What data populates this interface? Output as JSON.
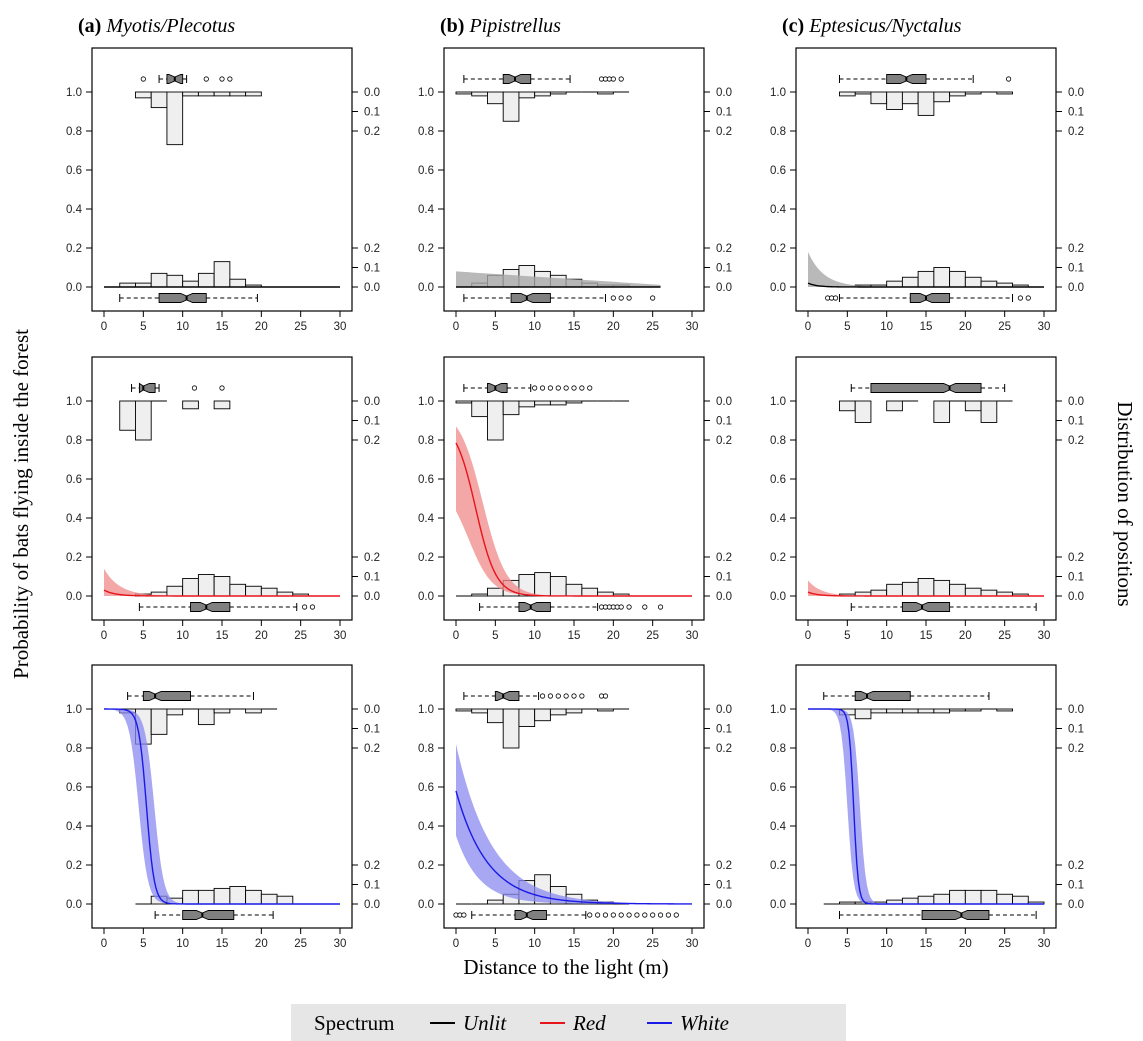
{
  "figure": {
    "ylabel_left": "Probability of bats flying inside the forest",
    "ylabel_right": "Distribution of positions",
    "xlabel": "Distance to the light (m)"
  },
  "columns": [
    {
      "letter": "(a)",
      "taxon": "Myotis/Plecotus"
    },
    {
      "letter": "(b)",
      "taxon": "Pipistrellus"
    },
    {
      "letter": "(c)",
      "taxon": "Eptesicus/Nyctalus"
    }
  ],
  "legend": {
    "title": "Spectrum",
    "items": [
      {
        "label": "Unlit",
        "color": "#000000"
      },
      {
        "label": "Red",
        "color": "#e8141b"
      },
      {
        "label": "White",
        "color": "#1a1ae6"
      }
    ]
  },
  "chart_data": {
    "type": "line",
    "layout": "3x3 small multiples (rows = spectrum, columns = taxon)",
    "xlim": [
      0,
      30
    ],
    "ylim": [
      0,
      1
    ],
    "x_ticks": [
      0,
      5,
      10,
      15,
      20,
      25,
      30
    ],
    "y_ticks": [
      0.0,
      0.2,
      0.4,
      0.6,
      0.8,
      1.0
    ],
    "right_axis_ticks": [
      0.0,
      0.1,
      0.2
    ],
    "hist_bins": [
      0,
      2,
      4,
      6,
      8,
      10,
      12,
      14,
      16,
      18,
      20,
      22,
      24,
      26,
      28,
      30
    ],
    "panels": [
      {
        "row": "Unlit",
        "col": "Myotis/Plecotus",
        "color": "#000000",
        "curve": {
          "type": "flat",
          "y": 0.0,
          "x_end": 30
        },
        "band": null,
        "hist_inside": {
          "bins": [
            4,
            6,
            8,
            10,
            12,
            14,
            16,
            18
          ],
          "freq": [
            0.03,
            0.08,
            0.27,
            0.02,
            0.02,
            0.02,
            0.02,
            0.02
          ]
        },
        "hist_outside": {
          "bins": [
            0,
            2,
            4,
            6,
            8,
            10,
            12,
            14,
            16,
            18
          ],
          "freq": [
            0.0,
            0.02,
            0.02,
            0.07,
            0.06,
            0.03,
            0.07,
            0.13,
            0.04,
            0.01
          ]
        },
        "box_inside": {
          "whisker_low": 7,
          "q1": 8,
          "median": 9,
          "q3": 10,
          "whisker_high": 10.5,
          "outliers": [
            5,
            13,
            15,
            16
          ]
        },
        "box_outside": {
          "whisker_low": 2,
          "q1": 7,
          "median": 10.5,
          "q3": 13,
          "whisker_high": 19.5,
          "outliers": []
        }
      },
      {
        "row": "Unlit",
        "col": "Pipistrellus",
        "color": "#000000",
        "curve": {
          "type": "flat",
          "y": 0.0,
          "x_end": 26
        },
        "band": {
          "type": "grey",
          "left": 0.08,
          "x_end": 26
        },
        "hist_inside": {
          "bins": [
            0,
            2,
            4,
            6,
            8,
            10,
            12,
            14,
            16,
            18,
            20
          ],
          "freq": [
            0.01,
            0.02,
            0.06,
            0.15,
            0.03,
            0.02,
            0.01,
            0.0,
            0.0,
            0.01,
            0.0
          ]
        },
        "hist_outside": {
          "bins": [
            0,
            2,
            4,
            6,
            8,
            10,
            12,
            14,
            16,
            18,
            20,
            22,
            24
          ],
          "freq": [
            0.0,
            0.02,
            0.06,
            0.09,
            0.11,
            0.08,
            0.06,
            0.04,
            0.02,
            0.01,
            0.01,
            0.0,
            0.0
          ]
        },
        "box_inside": {
          "whisker_low": 1,
          "q1": 6,
          "median": 7.5,
          "q3": 9.5,
          "whisker_high": 14.5,
          "outliers": [
            18.5,
            19,
            19.5,
            20,
            21
          ]
        },
        "box_outside": {
          "whisker_low": 1,
          "q1": 7,
          "median": 9,
          "q3": 12,
          "whisker_high": 19,
          "outliers": [
            20,
            21,
            22,
            25
          ]
        }
      },
      {
        "row": "Unlit",
        "col": "Eptesicus/Nyctalus",
        "color": "#000000",
        "curve": {
          "type": "exp",
          "left": 0.02,
          "k": 0.9,
          "x_end": 30
        },
        "band": {
          "type": "grey",
          "left": 0.18,
          "k": 0.5,
          "x_end": 30
        },
        "hist_inside": {
          "bins": [
            4,
            6,
            8,
            10,
            12,
            14,
            16,
            18,
            20,
            22,
            24
          ],
          "freq": [
            0.02,
            0.01,
            0.06,
            0.09,
            0.06,
            0.12,
            0.05,
            0.02,
            0.01,
            0.0,
            0.01
          ]
        },
        "hist_outside": {
          "bins": [
            4,
            6,
            8,
            10,
            12,
            14,
            16,
            18,
            20,
            22,
            24,
            26,
            28
          ],
          "freq": [
            0.0,
            0.01,
            0.01,
            0.03,
            0.05,
            0.08,
            0.1,
            0.08,
            0.05,
            0.03,
            0.02,
            0.01,
            0.0
          ]
        },
        "box_inside": {
          "whisker_low": 4,
          "q1": 10,
          "median": 12.5,
          "q3": 15,
          "whisker_high": 21,
          "outliers": [
            25.5
          ]
        },
        "box_outside": {
          "whisker_low": 4,
          "q1": 13,
          "median": 15,
          "q3": 18,
          "whisker_high": 26,
          "outliers": [
            2.5,
            3,
            3.5,
            27,
            28
          ]
        }
      },
      {
        "row": "Red",
        "col": "Myotis/Plecotus",
        "color": "#e8141b",
        "curve": {
          "type": "exp",
          "left": 0.03,
          "k": 0.7,
          "x_end": 30
        },
        "band": {
          "type": "colored",
          "left": 0.14,
          "k": 0.5,
          "x_end": 30
        },
        "hist_inside": {
          "bins": [
            2,
            4,
            6,
            10,
            14
          ],
          "freq": [
            0.15,
            0.2,
            0.0,
            0.04,
            0.04
          ]
        },
        "hist_outside": {
          "bins": [
            4,
            6,
            8,
            10,
            12,
            14,
            16,
            18,
            20,
            22,
            24,
            26
          ],
          "freq": [
            0.01,
            0.02,
            0.05,
            0.09,
            0.11,
            0.1,
            0.06,
            0.05,
            0.04,
            0.02,
            0.01,
            0.0
          ]
        },
        "box_inside": {
          "whisker_low": 3.5,
          "q1": 4.5,
          "median": 5,
          "q3": 6.5,
          "whisker_high": 7,
          "outliers": [
            11.5,
            15
          ]
        },
        "box_outside": {
          "whisker_low": 4.5,
          "q1": 11,
          "median": 13,
          "q3": 16,
          "whisker_high": 24.5,
          "outliers": [
            25.5,
            26.5
          ]
        }
      },
      {
        "row": "Red",
        "col": "Pipistrellus",
        "color": "#e8141b",
        "curve": {
          "type": "sigmoid",
          "x0": 2.5,
          "s": 1.3,
          "top": 0.9,
          "x_end": 30
        },
        "band": {
          "type": "colored",
          "x0": 2.5,
          "s": 1.5,
          "top": 0.96,
          "bottom": 0.75,
          "x_end": 30
        },
        "hist_inside": {
          "bins": [
            0,
            2,
            4,
            6,
            8,
            10,
            12,
            14,
            16,
            18,
            20
          ],
          "freq": [
            0.01,
            0.08,
            0.2,
            0.07,
            0.03,
            0.02,
            0.02,
            0.01,
            0.0,
            0.0,
            0.0
          ]
        },
        "hist_outside": {
          "bins": [
            0,
            2,
            4,
            6,
            8,
            10,
            12,
            14,
            16,
            18,
            20,
            22,
            24
          ],
          "freq": [
            0.0,
            0.01,
            0.04,
            0.08,
            0.11,
            0.12,
            0.1,
            0.06,
            0.04,
            0.02,
            0.01,
            0.0,
            0.0
          ]
        },
        "box_inside": {
          "whisker_low": 1,
          "q1": 4,
          "median": 5,
          "q3": 6.5,
          "whisker_high": 9.5,
          "outliers": [
            10,
            11,
            12,
            13,
            14,
            15,
            16,
            17
          ]
        },
        "box_outside": {
          "whisker_low": 3,
          "q1": 8,
          "median": 9.5,
          "q3": 12,
          "whisker_high": 18,
          "outliers": [
            18.5,
            19,
            19.5,
            20,
            20.5,
            21,
            22,
            24,
            26
          ]
        }
      },
      {
        "row": "Red",
        "col": "Eptesicus/Nyctalus",
        "color": "#e8141b",
        "curve": {
          "type": "exp",
          "left": 0.02,
          "k": 0.8,
          "x_end": 30
        },
        "band": {
          "type": "colored",
          "left": 0.08,
          "k": 0.6,
          "x_end": 30
        },
        "hist_inside": {
          "bins": [
            4,
            6,
            10,
            12,
            16,
            18,
            20,
            22,
            24
          ],
          "freq": [
            0.05,
            0.11,
            0.05,
            0.0,
            0.11,
            0.0,
            0.05,
            0.11,
            0.0
          ]
        },
        "hist_outside": {
          "bins": [
            4,
            6,
            8,
            10,
            12,
            14,
            16,
            18,
            20,
            22,
            24,
            26,
            28
          ],
          "freq": [
            0.01,
            0.02,
            0.03,
            0.06,
            0.07,
            0.09,
            0.08,
            0.06,
            0.04,
            0.03,
            0.02,
            0.01,
            0.0
          ]
        },
        "box_inside": {
          "whisker_low": 5.5,
          "q1": 8,
          "median": 18,
          "q3": 22,
          "whisker_high": 25,
          "outliers": []
        },
        "box_outside": {
          "whisker_low": 5.5,
          "q1": 12,
          "median": 14.5,
          "q3": 18,
          "whisker_high": 29,
          "outliers": []
        }
      },
      {
        "row": "White",
        "col": "Myotis/Plecotus",
        "color": "#1a1ae6",
        "curve": {
          "type": "sigmoid",
          "x0": 5.4,
          "s": 0.5,
          "top": 1.0,
          "x_start": 0,
          "x_end": 30
        },
        "band": {
          "type": "colored",
          "x0": 5.4,
          "s": 0.6,
          "top": 1.0,
          "bottom": 1.0,
          "spread": 1.0,
          "x_end": 30
        },
        "hist_inside": {
          "bins": [
            2,
            4,
            6,
            8,
            10,
            12,
            14,
            16,
            18,
            20
          ],
          "freq": [
            0.02,
            0.18,
            0.13,
            0.03,
            0.0,
            0.08,
            0.02,
            0.0,
            0.02,
            0.0
          ]
        },
        "hist_outside": {
          "bins": [
            4,
            6,
            8,
            10,
            12,
            14,
            16,
            18,
            20,
            22
          ],
          "freq": [
            0.0,
            0.04,
            0.03,
            0.07,
            0.07,
            0.08,
            0.09,
            0.07,
            0.05,
            0.04
          ]
        },
        "box_inside": {
          "whisker_low": 3,
          "q1": 5,
          "median": 6.5,
          "q3": 11,
          "whisker_high": 19,
          "outliers": []
        },
        "box_outside": {
          "whisker_low": 6.5,
          "q1": 10,
          "median": 12.5,
          "q3": 16.5,
          "whisker_high": 21.5,
          "outliers": []
        }
      },
      {
        "row": "White",
        "col": "Pipistrellus",
        "color": "#1a1ae6",
        "curve": {
          "type": "exp",
          "left": 0.58,
          "k": 0.25,
          "x_end": 30
        },
        "band": {
          "type": "colored",
          "left_top": 0.82,
          "left_bottom": 0.35,
          "k": 0.22,
          "x_end": 30
        },
        "hist_inside": {
          "bins": [
            0,
            2,
            4,
            6,
            8,
            10,
            12,
            14,
            16,
            18,
            20
          ],
          "freq": [
            0.01,
            0.02,
            0.07,
            0.2,
            0.09,
            0.06,
            0.03,
            0.02,
            0.0,
            0.01,
            0.0
          ]
        },
        "hist_outside": {
          "bins": [
            0,
            2,
            4,
            6,
            8,
            10,
            12,
            14,
            16,
            18,
            20
          ],
          "freq": [
            0.0,
            0.0,
            0.02,
            0.05,
            0.12,
            0.15,
            0.09,
            0.05,
            0.02,
            0.01,
            0.0
          ]
        },
        "box_inside": {
          "whisker_low": 1,
          "q1": 5,
          "median": 6,
          "q3": 8,
          "whisker_high": 10.5,
          "outliers": [
            11,
            12,
            13,
            14,
            15,
            16,
            18.5,
            19
          ]
        },
        "box_outside": {
          "whisker_low": 2,
          "q1": 7.5,
          "median": 9,
          "q3": 11.5,
          "whisker_high": 16.5,
          "outliers": [
            0,
            0.5,
            1,
            17,
            18,
            19,
            20,
            21,
            22,
            23,
            24,
            25,
            26,
            27,
            28
          ]
        }
      },
      {
        "row": "White",
        "col": "Eptesicus/Nyctalus",
        "color": "#1a1ae6",
        "curve": {
          "type": "sigmoid",
          "x0": 5.8,
          "s": 0.3,
          "top": 1.0,
          "x_start": 0,
          "x_end": 30
        },
        "band": {
          "type": "colored",
          "x0": 5.8,
          "s": 0.4,
          "top": 1.0,
          "bottom": 1.0,
          "spread": 0.8,
          "x_end": 30
        },
        "hist_inside": {
          "bins": [
            2,
            4,
            6,
            8,
            10,
            12,
            14,
            16,
            18,
            20,
            22,
            24
          ],
          "freq": [
            0.0,
            0.03,
            0.05,
            0.02,
            0.02,
            0.02,
            0.02,
            0.02,
            0.01,
            0.01,
            0.0,
            0.01
          ]
        },
        "hist_outside": {
          "bins": [
            2,
            4,
            6,
            8,
            10,
            12,
            14,
            16,
            18,
            20,
            22,
            24,
            26,
            28
          ],
          "freq": [
            0.0,
            0.01,
            0.01,
            0.01,
            0.02,
            0.03,
            0.04,
            0.05,
            0.07,
            0.07,
            0.07,
            0.05,
            0.04,
            0.01
          ]
        },
        "box_inside": {
          "whisker_low": 2,
          "q1": 6,
          "median": 7.5,
          "q3": 13,
          "whisker_high": 23,
          "outliers": []
        },
        "box_outside": {
          "whisker_low": 4,
          "q1": 14.5,
          "median": 19.5,
          "q3": 23,
          "whisker_high": 29,
          "outliers": []
        }
      }
    ]
  }
}
